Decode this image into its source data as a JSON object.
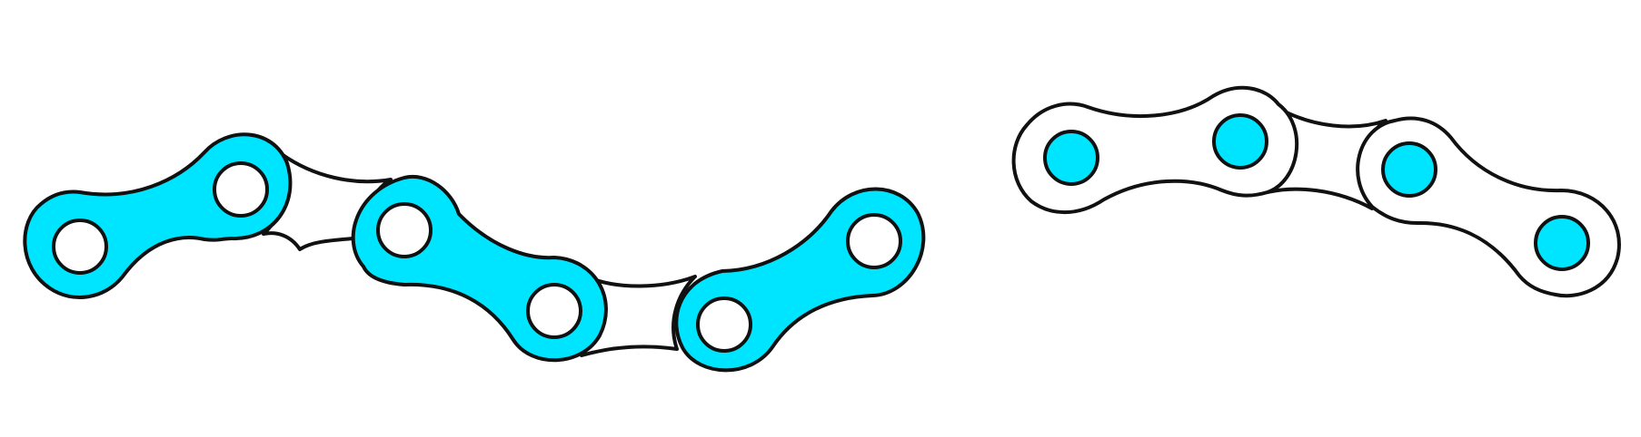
{
  "colors": {
    "background": "#ffffff",
    "outline": "#111111",
    "fill_cyan": "#00e5ff",
    "fill_white": "#ffffff"
  },
  "illustrations": [
    {
      "id": "chain-left",
      "description_name": "chain-segment-left",
      "outer_links": 3,
      "inner_links": 2,
      "outer_link_fill": "cyan",
      "pin_fill": "white"
    },
    {
      "id": "chain-right",
      "description_name": "chain-segment-right",
      "outer_links": 2,
      "inner_links": 1,
      "outer_link_fill": "white",
      "pin_fill": "cyan"
    }
  ]
}
